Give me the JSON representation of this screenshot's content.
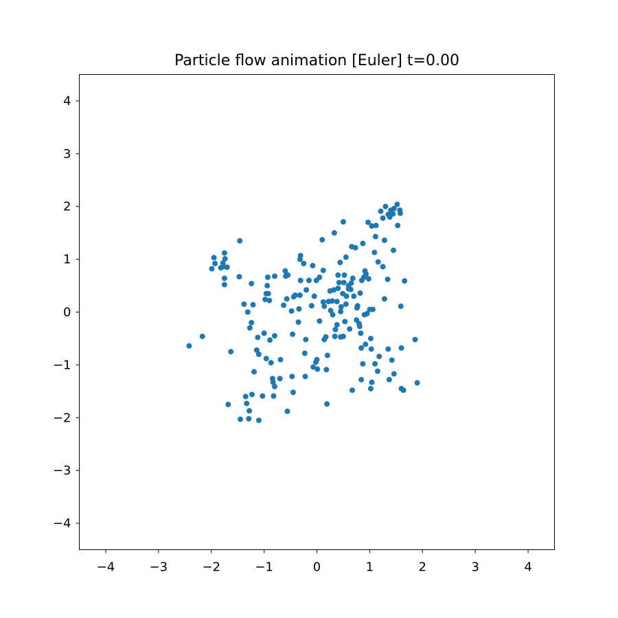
{
  "chart_data": {
    "type": "scatter",
    "title": "Particle flow animation [Euler] t=0.00",
    "xlabel": "",
    "ylabel": "",
    "xlim": [
      -4.5,
      4.5
    ],
    "ylim": [
      -4.5,
      4.5
    ],
    "xticks": [
      -4,
      -3,
      -2,
      -1,
      0,
      1,
      2,
      3,
      4
    ],
    "yticks": [
      -4,
      -3,
      -2,
      -1,
      0,
      1,
      2,
      3,
      4
    ],
    "xtick_labels": [
      "−4",
      "−3",
      "−2",
      "−1",
      "0",
      "1",
      "2",
      "3",
      "4"
    ],
    "ytick_labels": [
      "−4",
      "−3",
      "−2",
      "−1",
      "0",
      "1",
      "2",
      "3",
      "4"
    ],
    "grid": false,
    "marker_color": "#1f77b4",
    "points": [
      [
        -1.95,
        1.03
      ],
      [
        -1.93,
        0.92
      ],
      [
        -1.99,
        0.82
      ],
      [
        -1.82,
        0.84
      ],
      [
        -1.78,
        0.93
      ],
      [
        -1.74,
        1.01
      ],
      [
        -1.75,
        1.12
      ],
      [
        -1.77,
        0.86
      ],
      [
        -1.7,
        0.85
      ],
      [
        -1.75,
        0.64
      ],
      [
        -1.75,
        0.52
      ],
      [
        -1.47,
        0.67
      ],
      [
        -1.46,
        1.35
      ],
      [
        -1.38,
        0.15
      ],
      [
        -1.31,
        0.0
      ],
      [
        -1.24,
        0.54
      ],
      [
        -1.21,
        0.14
      ],
      [
        -1.24,
        -0.2
      ],
      [
        -1.27,
        -0.3
      ],
      [
        -1.12,
        -0.48
      ],
      [
        -1.1,
        -0.8
      ],
      [
        -1.14,
        -0.72
      ],
      [
        -1.19,
        -1.13
      ],
      [
        -0.96,
        -0.88
      ],
      [
        -0.87,
        -0.96
      ],
      [
        -0.89,
        -0.53
      ],
      [
        -1.0,
        -0.4
      ],
      [
        -0.98,
        0.24
      ],
      [
        -0.96,
        0.35
      ],
      [
        -0.92,
        0.35
      ],
      [
        -0.94,
        0.5
      ],
      [
        -0.9,
        0.22
      ],
      [
        -0.93,
        0.66
      ],
      [
        -0.8,
        0.68
      ],
      [
        -0.8,
        -0.45
      ],
      [
        -0.84,
        -1.26
      ],
      [
        -0.83,
        -1.33
      ],
      [
        -0.8,
        -1.41
      ],
      [
        -0.82,
        -1.59
      ],
      [
        -0.7,
        -1.26
      ],
      [
        -0.69,
        -0.9
      ],
      [
        -0.63,
        0.13
      ],
      [
        -0.57,
        0.25
      ],
      [
        -0.59,
        0.68
      ],
      [
        -0.6,
        0.78
      ],
      [
        -0.55,
        0.7
      ],
      [
        -0.48,
        0.02
      ],
      [
        -0.44,
        0.29
      ],
      [
        -0.46,
        -0.42
      ],
      [
        -0.47,
        -1.22
      ],
      [
        -0.45,
        -1.52
      ],
      [
        -0.56,
        -1.88
      ],
      [
        -0.41,
        0.32
      ],
      [
        -0.32,
        0.32
      ],
      [
        -0.34,
        0.06
      ],
      [
        -0.35,
        -0.19
      ],
      [
        -0.31,
        0.6
      ],
      [
        -0.32,
        1.0
      ],
      [
        -0.31,
        1.07
      ],
      [
        -0.25,
        0.92
      ],
      [
        -0.2,
        0.42
      ],
      [
        -0.21,
        -0.52
      ],
      [
        -0.23,
        -0.78
      ],
      [
        -0.22,
        -1.22
      ],
      [
        -0.15,
        0.6
      ],
      [
        -0.08,
        0.88
      ],
      [
        -0.1,
        0.12
      ],
      [
        -0.07,
        -1.04
      ],
      [
        -0.02,
        -0.95
      ],
      [
        0.01,
        -1.08
      ],
      [
        0.0,
        -0.9
      ],
      [
        0.05,
        -0.17
      ],
      [
        0.05,
        0.66
      ],
      [
        -0.01,
        0.6
      ],
      [
        0.1,
        1.37
      ],
      [
        0.12,
        0.19
      ],
      [
        0.14,
        0.11
      ],
      [
        0.12,
        0.79
      ],
      [
        0.14,
        -0.52
      ],
      [
        0.17,
        -0.47
      ],
      [
        0.18,
        -1.09
      ],
      [
        0.19,
        -1.74
      ],
      [
        0.2,
        -0.82
      ],
      [
        0.22,
        0.2
      ],
      [
        0.26,
        0.03
      ],
      [
        0.29,
        0.21
      ],
      [
        0.32,
        0.42
      ],
      [
        0.33,
        1.5
      ],
      [
        0.35,
        -0.33
      ],
      [
        0.34,
        -0.46
      ],
      [
        0.38,
        -0.24
      ],
      [
        0.38,
        0.2
      ],
      [
        0.4,
        0.45
      ],
      [
        0.42,
        0.56
      ],
      [
        0.4,
        0.7
      ],
      [
        0.44,
        0.94
      ],
      [
        0.45,
        -0.47
      ],
      [
        0.46,
        0.1
      ],
      [
        0.49,
        0.35
      ],
      [
        0.52,
        0.7
      ],
      [
        0.5,
        1.71
      ],
      [
        0.51,
        0.56
      ],
      [
        0.53,
        -0.18
      ],
      [
        0.55,
        1.04
      ],
      [
        0.56,
        0.3
      ],
      [
        0.6,
        0.5
      ],
      [
        0.6,
        0.44
      ],
      [
        0.62,
        -0.32
      ],
      [
        0.64,
        0.43
      ],
      [
        0.66,
        1.24
      ],
      [
        0.67,
        -1.48
      ],
      [
        0.68,
        0.64
      ],
      [
        0.7,
        0.3
      ],
      [
        0.73,
        1.22
      ],
      [
        0.76,
        0.08
      ],
      [
        0.77,
        0.12
      ],
      [
        0.8,
        -0.22
      ],
      [
        0.81,
        -0.27
      ],
      [
        0.82,
        0.36
      ],
      [
        0.83,
        -0.4
      ],
      [
        0.84,
        -1.28
      ],
      [
        0.84,
        -0.68
      ],
      [
        0.85,
        0.6
      ],
      [
        0.87,
        -0.98
      ],
      [
        0.87,
        1.3
      ],
      [
        0.89,
        0.66
      ],
      [
        0.91,
        0.78
      ],
      [
        0.92,
        -0.61
      ],
      [
        0.93,
        0.72
      ],
      [
        0.95,
        -0.03
      ],
      [
        0.97,
        1.7
      ],
      [
        0.98,
        0.63
      ],
      [
        1.02,
        -0.5
      ],
      [
        1.03,
        -0.7
      ],
      [
        1.04,
        1.63
      ],
      [
        1.02,
        -1.45
      ],
      [
        1.04,
        -1.33
      ],
      [
        1.06,
        0.05
      ],
      [
        1.09,
        1.13
      ],
      [
        1.1,
        -0.98
      ],
      [
        1.11,
        1.43
      ],
      [
        1.12,
        1.64
      ],
      [
        1.15,
        -1.12
      ],
      [
        1.16,
        0.95
      ],
      [
        1.18,
        -0.84
      ],
      [
        1.21,
        1.91
      ],
      [
        1.25,
        0.86
      ],
      [
        1.25,
        1.78
      ],
      [
        1.28,
        0.25
      ],
      [
        1.28,
        1.36
      ],
      [
        1.3,
        2.0
      ],
      [
        1.34,
        0.62
      ],
      [
        1.35,
        -0.7
      ],
      [
        1.35,
        1.85
      ],
      [
        1.37,
        -1.28
      ],
      [
        1.38,
        1.8
      ],
      [
        1.4,
        1.93
      ],
      [
        1.42,
        -0.91
      ],
      [
        1.44,
        1.86
      ],
      [
        1.45,
        1.17
      ],
      [
        1.46,
        -1.17
      ],
      [
        1.46,
        1.96
      ],
      [
        1.52,
        2.04
      ],
      [
        1.53,
        1.64
      ],
      [
        1.57,
        1.93
      ],
      [
        1.58,
        1.87
      ],
      [
        1.59,
        0.11
      ],
      [
        1.6,
        -0.68
      ],
      [
        1.6,
        -1.45
      ],
      [
        1.64,
        -1.48
      ],
      [
        1.66,
        0.59
      ],
      [
        1.86,
        -0.52
      ],
      [
        1.9,
        -1.34
      ],
      [
        -2.42,
        -0.64
      ],
      [
        -2.17,
        -0.46
      ],
      [
        -1.68,
        -1.75
      ],
      [
        -1.63,
        -0.75
      ],
      [
        -1.45,
        -2.03
      ],
      [
        -1.35,
        -1.6
      ],
      [
        -1.33,
        -1.73
      ],
      [
        -1.29,
        -2.02
      ],
      [
        -1.28,
        -1.87
      ],
      [
        -1.23,
        -1.56
      ],
      [
        -1.1,
        -2.05
      ],
      [
        -1.03,
        -1.59
      ],
      [
        0.5,
        -0.46
      ],
      [
        0.9,
        -0.05
      ],
      [
        1.0,
        0.05
      ],
      [
        0.45,
        0.01
      ],
      [
        0.25,
        0.4
      ],
      [
        -0.05,
        0.3
      ],
      [
        0.3,
        -0.05
      ],
      [
        0.55,
        0.15
      ],
      [
        0.75,
        -0.15
      ],
      [
        0.65,
        0.55
      ]
    ]
  }
}
